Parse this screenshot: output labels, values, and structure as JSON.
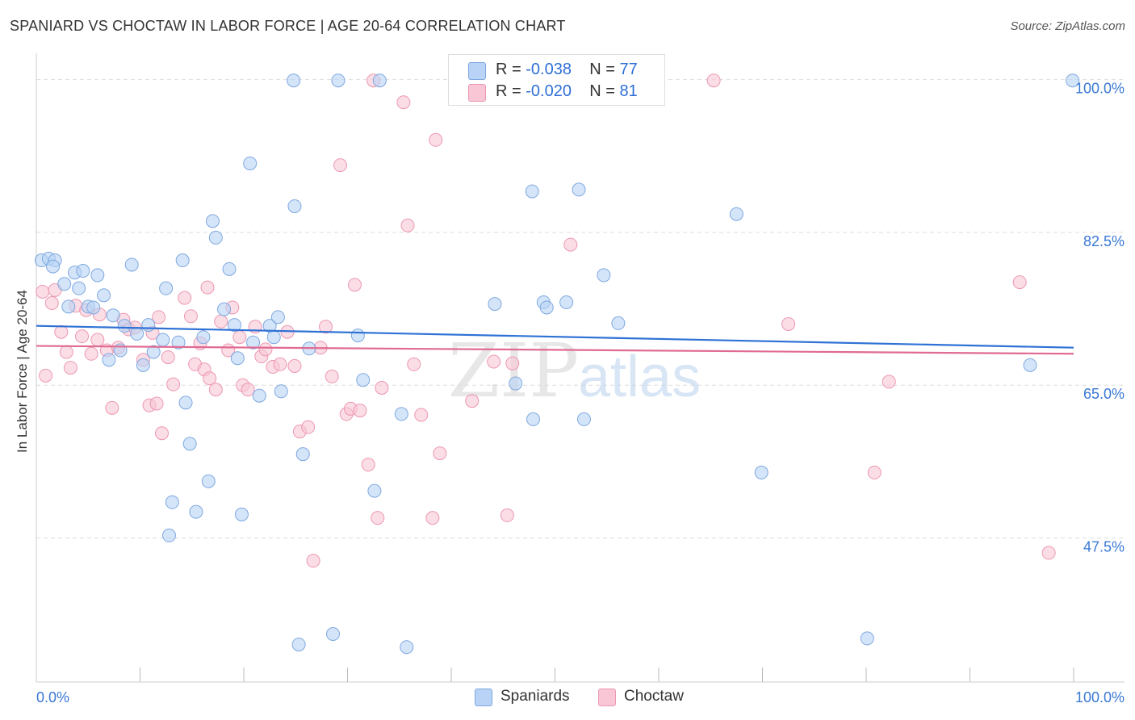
{
  "header": {
    "title": "SPANIARD VS CHOCTAW IN LABOR FORCE | AGE 20-64 CORRELATION CHART",
    "source": "Source: ZipAtlas.com"
  },
  "legend": {
    "spaniards": {
      "r_label": "R =",
      "r_value": "-0.038",
      "n_label": "N =",
      "n_value": "77"
    },
    "choctaw": {
      "r_label": "R =",
      "r_value": "-0.020",
      "n_label": "N =",
      "n_value": "81"
    }
  },
  "colors": {
    "blue_fill": "#b8d3f5",
    "blue_stroke": "#7fa8e0",
    "blue_line": "#2f72d6",
    "pink_fill": "#f9c6d5",
    "pink_stroke": "#ec98b2",
    "pink_line": "#e06a92",
    "axis_text": "#3a78d4",
    "grid": "#dddddd"
  },
  "chart_data": {
    "type": "scatter",
    "title": "SPANIARD VS CHOCTAW IN LABOR FORCE | AGE 20-64 CORRELATION CHART",
    "xlabel": "",
    "ylabel": "In Labor Force | Age 20-64",
    "xlim": [
      0,
      100
    ],
    "ylim": [
      31,
      102
    ],
    "x_tick_labels": [
      "0.0%",
      "100.0%"
    ],
    "y_ticks": [
      47.5,
      65.0,
      82.5,
      100.0
    ],
    "y_tick_labels": [
      "47.5%",
      "65.0%",
      "82.5%",
      "100.0%"
    ],
    "grid": true,
    "legend_position": "top-center",
    "series": [
      {
        "name": "Spaniards",
        "color": "#b8d3f5",
        "trend": {
          "y_at_x0": 71.8,
          "y_at_x100": 69.3
        },
        "points": [
          [
            0.5,
            79.3
          ],
          [
            1.2,
            79.5
          ],
          [
            1.8,
            79.3
          ],
          [
            1.6,
            78.6
          ],
          [
            2.7,
            76.6
          ],
          [
            3.1,
            74.0
          ],
          [
            3.7,
            77.9
          ],
          [
            4.1,
            76.1
          ],
          [
            4.5,
            78.1
          ],
          [
            5.0,
            74.0
          ],
          [
            5.5,
            73.9
          ],
          [
            5.9,
            77.6
          ],
          [
            6.5,
            75.3
          ],
          [
            7.0,
            67.9
          ],
          [
            7.4,
            73.0
          ],
          [
            8.1,
            69.0
          ],
          [
            8.5,
            71.8
          ],
          [
            9.2,
            78.8
          ],
          [
            9.7,
            70.9
          ],
          [
            10.3,
            67.3
          ],
          [
            10.8,
            71.9
          ],
          [
            11.3,
            68.8
          ],
          [
            12.2,
            70.2
          ],
          [
            12.5,
            76.1
          ],
          [
            12.8,
            47.8
          ],
          [
            13.1,
            51.6
          ],
          [
            13.7,
            69.9
          ],
          [
            14.1,
            79.3
          ],
          [
            14.4,
            63.0
          ],
          [
            14.8,
            58.3
          ],
          [
            15.4,
            50.5
          ],
          [
            16.1,
            70.5
          ],
          [
            16.6,
            54.0
          ],
          [
            17.0,
            83.8
          ],
          [
            17.3,
            81.9
          ],
          [
            18.1,
            73.7
          ],
          [
            18.6,
            78.3
          ],
          [
            19.1,
            71.9
          ],
          [
            19.4,
            68.1
          ],
          [
            19.8,
            50.2
          ],
          [
            20.6,
            90.4
          ],
          [
            20.9,
            69.9
          ],
          [
            21.5,
            63.8
          ],
          [
            22.5,
            71.8
          ],
          [
            22.9,
            70.5
          ],
          [
            23.3,
            72.8
          ],
          [
            23.6,
            64.3
          ],
          [
            24.8,
            99.9
          ],
          [
            24.9,
            85.5
          ],
          [
            25.3,
            35.3
          ],
          [
            25.7,
            57.1
          ],
          [
            26.3,
            69.2
          ],
          [
            28.6,
            36.5
          ],
          [
            29.1,
            99.9
          ],
          [
            31.0,
            70.7
          ],
          [
            31.5,
            65.6
          ],
          [
            32.6,
            52.9
          ],
          [
            33.1,
            99.9
          ],
          [
            35.2,
            61.7
          ],
          [
            35.7,
            35.0
          ],
          [
            44.2,
            74.3
          ],
          [
            46.2,
            65.2
          ],
          [
            47.8,
            87.2
          ],
          [
            47.9,
            61.1
          ],
          [
            48.9,
            74.5
          ],
          [
            49.2,
            73.9
          ],
          [
            49.6,
            99.9
          ],
          [
            51.1,
            74.5
          ],
          [
            52.3,
            87.4
          ],
          [
            52.8,
            61.1
          ],
          [
            54.7,
            77.6
          ],
          [
            56.1,
            72.1
          ],
          [
            67.5,
            84.6
          ],
          [
            69.9,
            55.0
          ],
          [
            80.1,
            36.0
          ],
          [
            95.8,
            67.3
          ],
          [
            99.9,
            99.9
          ]
        ]
      },
      {
        "name": "Choctaw",
        "color": "#f9c6d5",
        "trend": {
          "y_at_x0": 69.5,
          "y_at_x100": 68.6
        },
        "points": [
          [
            0.6,
            75.7
          ],
          [
            0.9,
            66.1
          ],
          [
            1.5,
            74.4
          ],
          [
            1.8,
            75.9
          ],
          [
            2.4,
            71.1
          ],
          [
            2.9,
            68.8
          ],
          [
            3.3,
            67.0
          ],
          [
            3.8,
            74.1
          ],
          [
            4.4,
            70.6
          ],
          [
            4.8,
            73.6
          ],
          [
            5.3,
            68.6
          ],
          [
            5.9,
            70.2
          ],
          [
            6.1,
            73.1
          ],
          [
            6.8,
            69.0
          ],
          [
            7.3,
            62.4
          ],
          [
            7.9,
            69.3
          ],
          [
            8.4,
            72.5
          ],
          [
            8.9,
            71.4
          ],
          [
            9.5,
            71.6
          ],
          [
            10.3,
            67.9
          ],
          [
            10.9,
            62.7
          ],
          [
            11.2,
            71.0
          ],
          [
            11.6,
            62.9
          ],
          [
            12.1,
            59.5
          ],
          [
            12.7,
            68.2
          ],
          [
            13.2,
            65.1
          ],
          [
            14.3,
            75.0
          ],
          [
            14.9,
            72.9
          ],
          [
            15.3,
            67.4
          ],
          [
            15.8,
            69.8
          ],
          [
            16.2,
            66.8
          ],
          [
            16.7,
            65.8
          ],
          [
            17.3,
            64.5
          ],
          [
            17.8,
            72.3
          ],
          [
            18.5,
            69.0
          ],
          [
            18.9,
            73.9
          ],
          [
            19.6,
            70.5
          ],
          [
            19.9,
            65.0
          ],
          [
            20.4,
            64.5
          ],
          [
            21.1,
            71.7
          ],
          [
            21.7,
            68.3
          ],
          [
            22.1,
            69.1
          ],
          [
            22.8,
            67.1
          ],
          [
            23.5,
            67.4
          ],
          [
            24.2,
            71.1
          ],
          [
            24.9,
            67.2
          ],
          [
            25.4,
            59.7
          ],
          [
            26.2,
            60.2
          ],
          [
            26.7,
            44.9
          ],
          [
            27.4,
            69.3
          ],
          [
            27.9,
            71.7
          ],
          [
            28.5,
            66.0
          ],
          [
            29.3,
            90.2
          ],
          [
            29.9,
            61.7
          ],
          [
            30.3,
            62.3
          ],
          [
            30.7,
            76.5
          ],
          [
            31.2,
            62.1
          ],
          [
            32.0,
            55.9
          ],
          [
            32.5,
            99.9
          ],
          [
            32.9,
            49.8
          ],
          [
            33.3,
            64.7
          ],
          [
            35.4,
            97.4
          ],
          [
            35.8,
            83.3
          ],
          [
            36.4,
            67.4
          ],
          [
            37.1,
            61.6
          ],
          [
            38.2,
            49.8
          ],
          [
            38.5,
            93.1
          ],
          [
            38.9,
            57.2
          ],
          [
            44.1,
            67.7
          ],
          [
            45.4,
            50.1
          ],
          [
            45.9,
            67.5
          ],
          [
            65.3,
            99.9
          ],
          [
            72.5,
            72.0
          ],
          [
            80.8,
            55.0
          ],
          [
            82.2,
            65.4
          ],
          [
            94.8,
            76.8
          ],
          [
            97.6,
            45.8
          ],
          [
            51.5,
            81.1
          ],
          [
            42.0,
            63.2
          ],
          [
            16.5,
            76.2
          ],
          [
            11.8,
            72.8
          ]
        ]
      }
    ]
  },
  "bottom_legend": {
    "spaniards": "Spaniards",
    "choctaw": "Choctaw"
  },
  "watermark": {
    "zip": "ZIP",
    "atlas": "atlas"
  }
}
